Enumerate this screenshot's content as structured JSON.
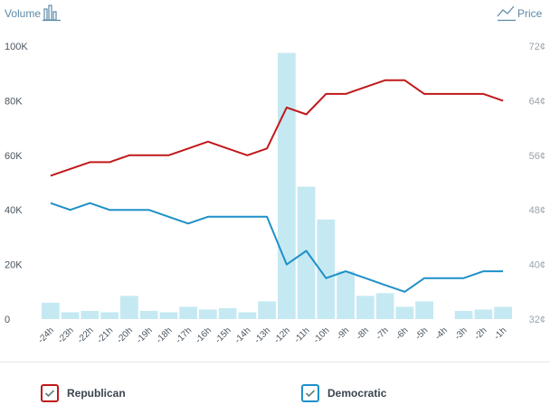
{
  "header": {
    "left_label": "Volume",
    "left_icon": "bar-chart-icon",
    "right_label": "Price",
    "right_icon": "line-chart-icon"
  },
  "chart_data": {
    "type": "bar+line",
    "categories": [
      "-24h",
      "-23h",
      "-22h",
      "-21h",
      "-20h",
      "-19h",
      "-18h",
      "-17h",
      "-16h",
      "-15h",
      "-14h",
      "-13h",
      "-12h",
      "-11h",
      "-10h",
      "-9h",
      "-8h",
      "-7h",
      "-6h",
      "-5h",
      "-4h",
      "-3h",
      "-2h",
      "-1h"
    ],
    "left_axis": {
      "ticks": [
        "0",
        "20K",
        "40K",
        "60K",
        "80K",
        "100K"
      ],
      "values": [
        0,
        20000,
        40000,
        60000,
        80000,
        100000
      ],
      "ylim": [
        0,
        100000
      ]
    },
    "right_axis": {
      "ticks": [
        "32¢",
        "40¢",
        "48¢",
        "56¢",
        "64¢",
        "72¢"
      ],
      "values": [
        32,
        40,
        48,
        56,
        64,
        72
      ],
      "ylim": [
        32,
        72
      ]
    },
    "volume": {
      "color": "#c5e9f2",
      "values": [
        6000,
        2500,
        3000,
        2500,
        8500,
        3000,
        2500,
        4500,
        3500,
        4000,
        2500,
        6500,
        97500,
        48500,
        36500,
        17500,
        8500,
        9500,
        4500,
        6500,
        0,
        3000,
        3500,
        4500
      ]
    },
    "series": [
      {
        "name": "Republican",
        "color": "#c0191b",
        "values": [
          53,
          54,
          55,
          55,
          56,
          56,
          56,
          57,
          58,
          57,
          56,
          57,
          63,
          62,
          65,
          65,
          66,
          67,
          67,
          65,
          65,
          65,
          65,
          64
        ]
      },
      {
        "name": "Democratic",
        "color": "#1f90c9",
        "values": [
          49,
          48,
          49,
          48,
          48,
          48,
          47,
          46,
          47,
          47,
          47,
          47,
          40,
          42,
          38,
          39,
          38,
          37,
          36,
          38,
          38,
          38,
          39,
          39
        ]
      }
    ],
    "grid": false,
    "legend": "bottom"
  }
}
